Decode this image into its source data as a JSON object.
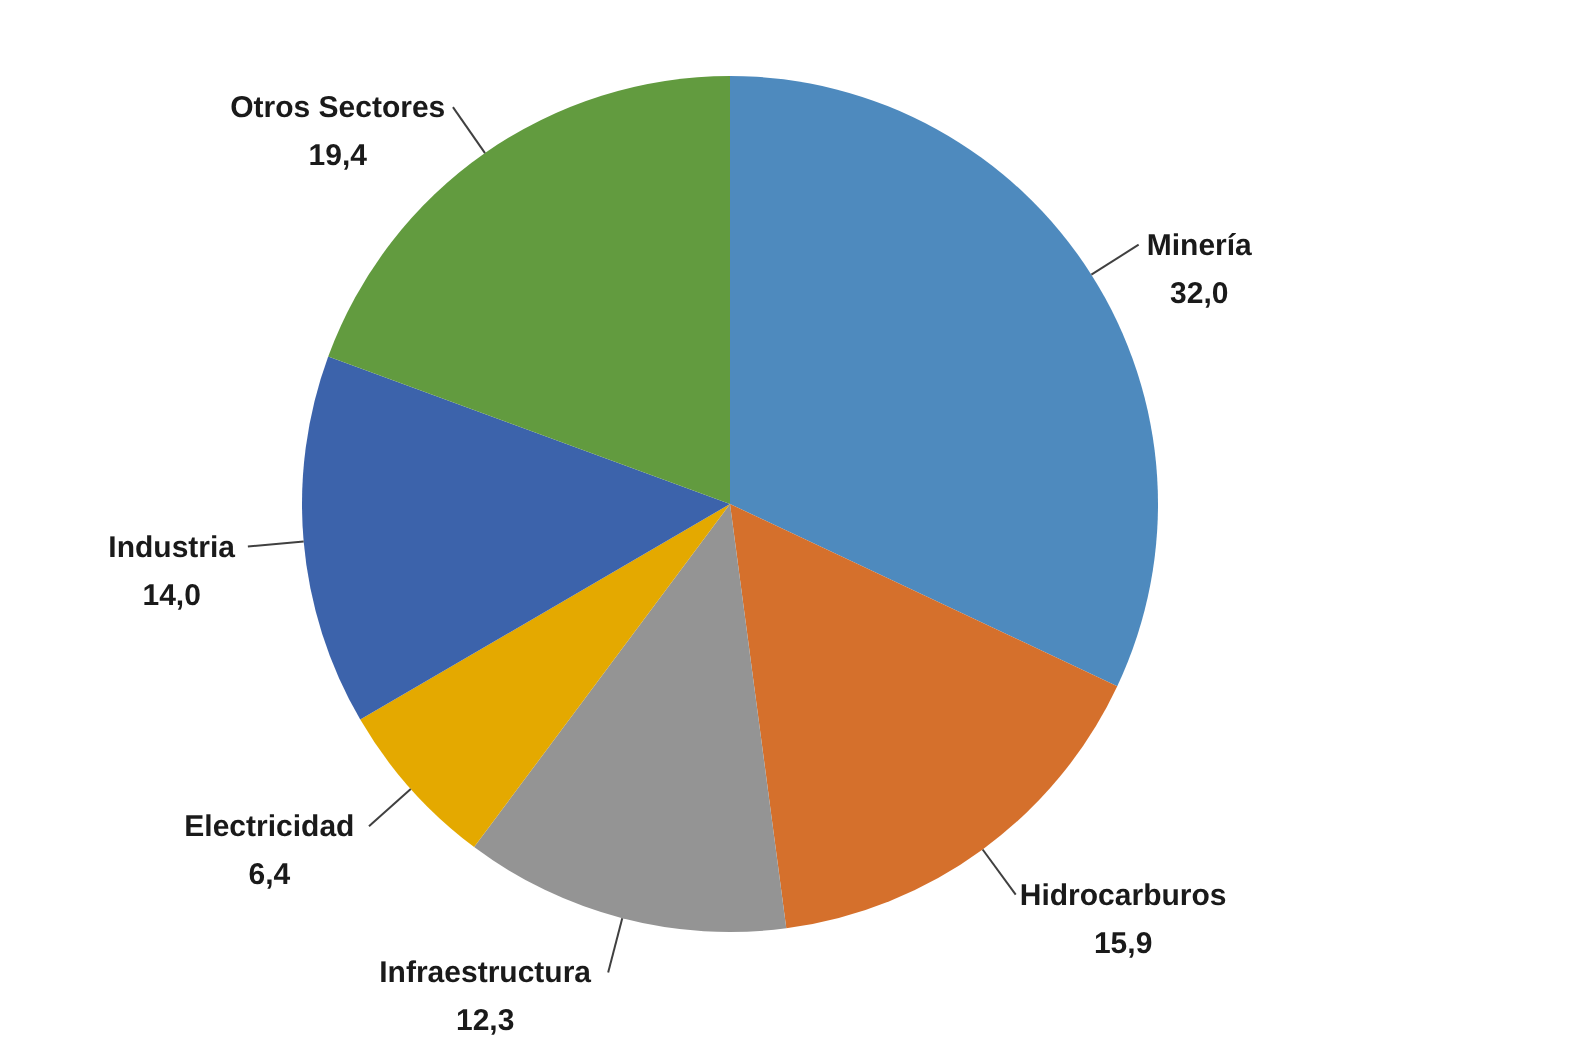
{
  "chart_data": {
    "type": "pie",
    "categories": [
      "Minería",
      "Hidrocarburos",
      "Infraestructura",
      "Electricidad",
      "Industria",
      "Otros Sectores"
    ],
    "values": [
      32.0,
      15.9,
      12.3,
      6.4,
      14.0,
      19.4
    ],
    "colors": [
      "#4e8abe",
      "#d5702c",
      "#949494",
      "#e4a900",
      "#3c63ab",
      "#629b3f"
    ],
    "value_labels": [
      "32,0",
      "15,9",
      "12,3",
      "6,4",
      "14,0",
      "19,4"
    ]
  }
}
